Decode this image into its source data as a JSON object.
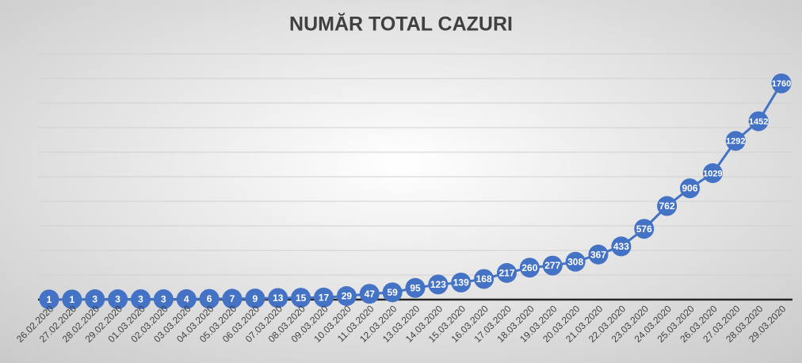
{
  "chart_data": {
    "type": "line",
    "title": "NUMĂR TOTAL CAZURI",
    "categories": [
      "26.02.2020",
      "27.02.2020",
      "28.02.2020",
      "29.02.2020",
      "01.03.2020",
      "02.03.2020",
      "03.03.2020",
      "04.03.2020",
      "05.03.2020",
      "06.03.2020",
      "07.03.2020",
      "08.03.2020",
      "09.03.2020",
      "10.03.2020",
      "11.03.2020",
      "12.03.2020",
      "13.03.2020",
      "14.03.2020",
      "15.03.2020",
      "16.03.2020",
      "17.03.2020",
      "18.03.2020",
      "19.03.2020",
      "20.03.2020",
      "21.03.2020",
      "22.03.2020",
      "23.03.2020",
      "24.03.2020",
      "25.03.2020",
      "26.03.2020",
      "27.03.2020",
      "28.03.2020",
      "29.03.2020"
    ],
    "values": [
      1,
      1,
      3,
      3,
      3,
      3,
      4,
      6,
      7,
      9,
      13,
      15,
      17,
      29,
      47,
      59,
      95,
      123,
      139,
      168,
      217,
      260,
      277,
      308,
      367,
      433,
      576,
      762,
      906,
      1029,
      1292,
      1452,
      1760
    ],
    "color": "#4472c4",
    "ylim": [
      0,
      2000
    ],
    "yticks": [
      0,
      200,
      400,
      600,
      800,
      1000,
      1200,
      1400,
      1600,
      1800,
      2000
    ],
    "grid": true
  }
}
